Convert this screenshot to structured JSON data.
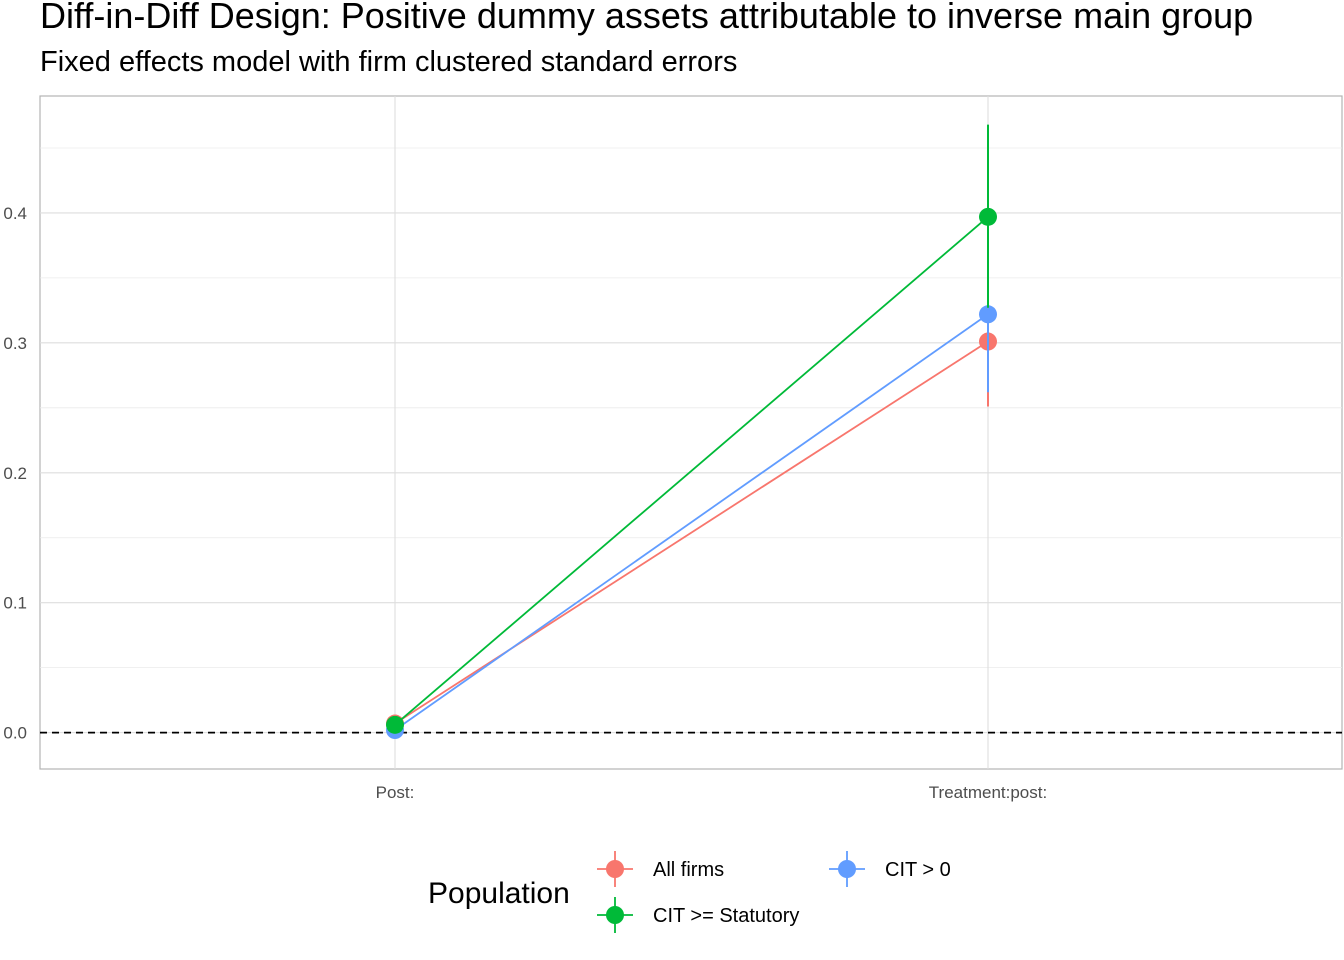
{
  "chart_data": {
    "type": "line",
    "title": "Diff-in-Diff Design: Positive dummy assets attributable to inverse main group",
    "subtitle": "Fixed effects model with firm clustered standard errors",
    "xlabel": "",
    "ylabel": "",
    "categories": [
      "Post:",
      "Treatment:post:"
    ],
    "ylim": [
      -0.028,
      0.49
    ],
    "yticks": [
      "0.0",
      "0.1",
      "0.2",
      "0.3",
      "0.4"
    ],
    "ytick_values": [
      0.0,
      0.1,
      0.2,
      0.3,
      0.4
    ],
    "grid": true,
    "reference_line": {
      "y": 0.0,
      "style": "dashed",
      "color": "#000000"
    },
    "legend": {
      "title": "Population",
      "placement": "bottom"
    },
    "series": [
      {
        "name": "All firms",
        "color": "#F8766D",
        "values": [
          0.007,
          0.301
        ],
        "ci_low": [
          0.003,
          0.251
        ],
        "ci_high": [
          0.011,
          0.351
        ]
      },
      {
        "name": "CIT >= Statutory",
        "color": "#00BA38",
        "values": [
          0.006,
          0.397
        ],
        "ci_low": [
          0.002,
          0.327
        ],
        "ci_high": [
          0.01,
          0.468
        ]
      },
      {
        "name": "CIT > 0",
        "color": "#619CFF",
        "values": [
          0.002,
          0.322
        ],
        "ci_low": [
          -0.002,
          0.262
        ],
        "ci_high": [
          0.006,
          0.382
        ]
      }
    ],
    "draw_order": [
      0,
      2,
      1
    ]
  }
}
